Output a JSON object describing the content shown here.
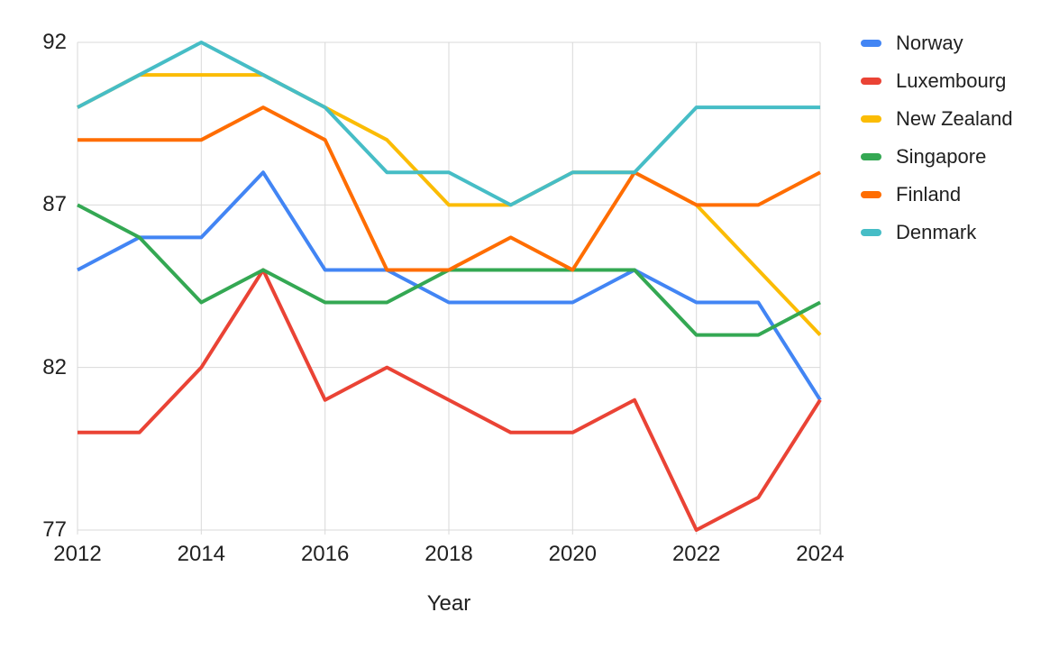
{
  "chart_data": {
    "type": "line",
    "x": [
      2012,
      2013,
      2014,
      2015,
      2016,
      2017,
      2018,
      2019,
      2020,
      2021,
      2022,
      2023,
      2024
    ],
    "series": [
      {
        "name": "Norway",
        "color": "#4285F4",
        "values": [
          85,
          86,
          86,
          88,
          85,
          85,
          84,
          84,
          84,
          85,
          84,
          84,
          81
        ]
      },
      {
        "name": "Luxembourg",
        "color": "#EA4335",
        "values": [
          80,
          80,
          82,
          85,
          81,
          82,
          81,
          80,
          80,
          81,
          77,
          78,
          81
        ]
      },
      {
        "name": "New Zealand",
        "color": "#FBBC04",
        "values": [
          90,
          91,
          91,
          91,
          90,
          89,
          87,
          87,
          88,
          88,
          87,
          85,
          83
        ]
      },
      {
        "name": "Singapore",
        "color": "#34A853",
        "values": [
          87,
          86,
          84,
          85,
          84,
          84,
          85,
          85,
          85,
          85,
          83,
          83,
          84
        ]
      },
      {
        "name": "Finland",
        "color": "#FF6D01",
        "values": [
          89,
          89,
          89,
          90,
          89,
          85,
          85,
          86,
          85,
          88,
          87,
          87,
          88
        ]
      },
      {
        "name": "Denmark",
        "color": "#46BDC6",
        "values": [
          90,
          91,
          92,
          91,
          90,
          88,
          88,
          87,
          88,
          88,
          90,
          90,
          90
        ]
      }
    ],
    "title": "",
    "xlabel": "Year",
    "ylabel": "",
    "ylim": [
      77,
      92
    ],
    "y_ticks": [
      77,
      82,
      87,
      92
    ],
    "x_ticks": [
      2012,
      2014,
      2016,
      2018,
      2020,
      2022,
      2024
    ],
    "grid": true,
    "legend_position": "right",
    "gridline_color": "#d9d9d9",
    "text_color": "#212121",
    "background_color": "#ffffff",
    "line_width": 4
  }
}
